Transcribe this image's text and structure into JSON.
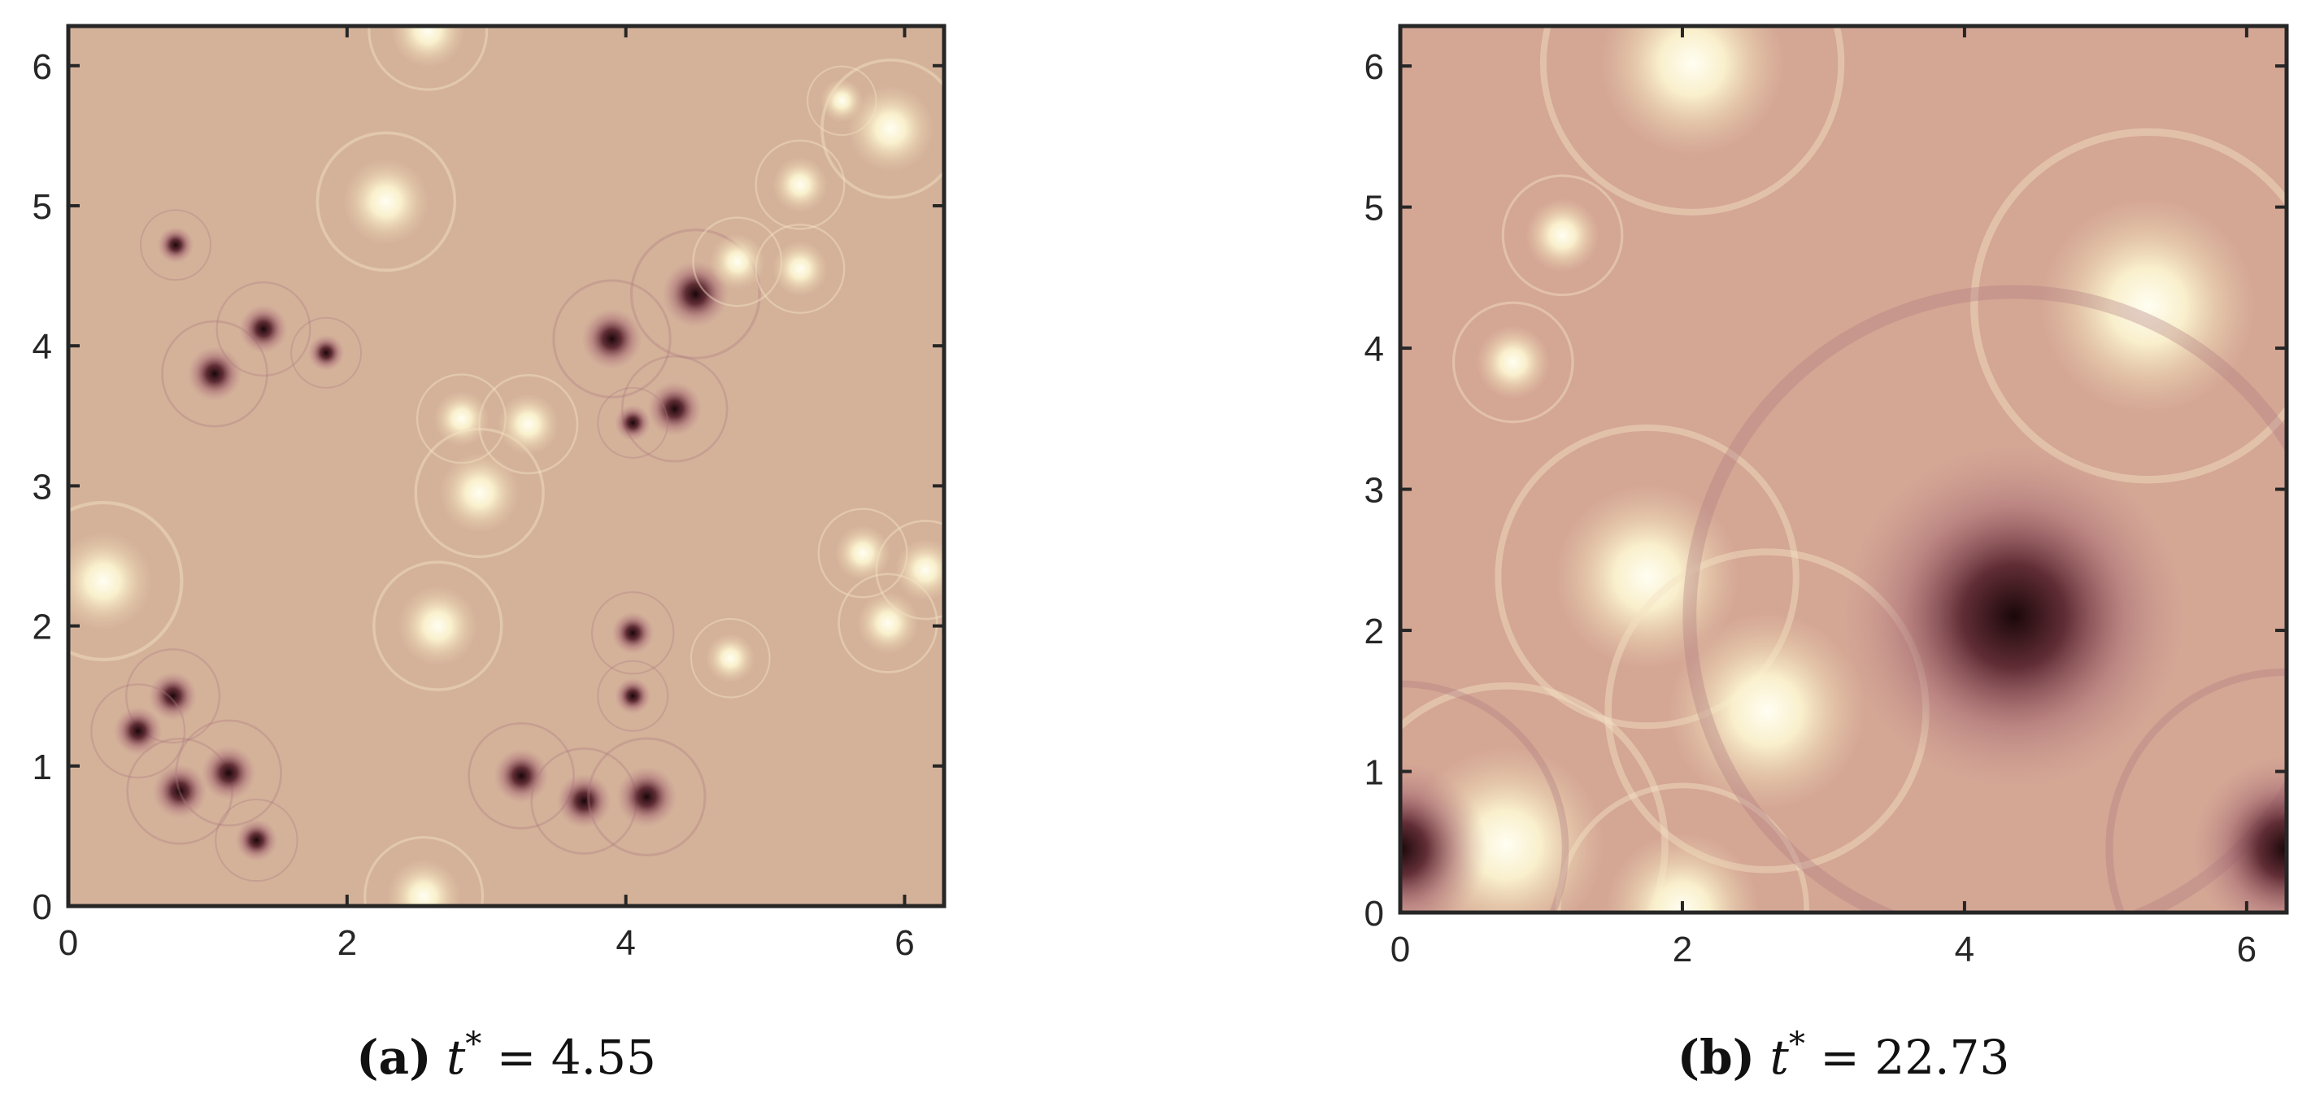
{
  "chart_data": [
    {
      "type": "heatmap",
      "caption": {
        "letter": "(a)",
        "variable": "t",
        "superscript": "*",
        "equals": "=",
        "value": "4.55"
      },
      "xlim": [
        0,
        6.2832
      ],
      "ylim": [
        0,
        6.2832
      ],
      "xticks": [
        0,
        2,
        4,
        6
      ],
      "yticks": [
        0,
        1,
        2,
        3,
        4,
        5,
        6
      ],
      "grid": false,
      "colors": {
        "background": "#d4b29a",
        "positive": "#fffbe6",
        "negative": "#1e0a0c"
      },
      "vortices": [
        {
          "x": 0.25,
          "y": 2.32,
          "r": 0.16,
          "sign": 1
        },
        {
          "x": 0.75,
          "y": 1.5,
          "r": 0.08,
          "sign": -1
        },
        {
          "x": 0.5,
          "y": 1.25,
          "r": 0.08,
          "sign": -1
        },
        {
          "x": 0.8,
          "y": 0.82,
          "r": 0.09,
          "sign": -1
        },
        {
          "x": 1.15,
          "y": 0.95,
          "r": 0.09,
          "sign": -1
        },
        {
          "x": 1.35,
          "y": 0.47,
          "r": 0.07,
          "sign": -1
        },
        {
          "x": 1.05,
          "y": 3.8,
          "r": 0.09,
          "sign": -1
        },
        {
          "x": 1.4,
          "y": 4.12,
          "r": 0.08,
          "sign": -1
        },
        {
          "x": 0.77,
          "y": 4.72,
          "r": 0.06,
          "sign": -1
        },
        {
          "x": 1.85,
          "y": 3.95,
          "r": 0.06,
          "sign": -1
        },
        {
          "x": 2.28,
          "y": 5.03,
          "r": 0.14,
          "sign": 1
        },
        {
          "x": 2.58,
          "y": 6.25,
          "r": 0.12,
          "sign": 1
        },
        {
          "x": 2.82,
          "y": 3.48,
          "r": 0.09,
          "sign": 1
        },
        {
          "x": 2.95,
          "y": 2.95,
          "r": 0.13,
          "sign": 1
        },
        {
          "x": 3.3,
          "y": 3.44,
          "r": 0.1,
          "sign": 1
        },
        {
          "x": 2.65,
          "y": 2.0,
          "r": 0.13,
          "sign": 1
        },
        {
          "x": 2.55,
          "y": 0.07,
          "r": 0.12,
          "sign": 1
        },
        {
          "x": 3.25,
          "y": 0.93,
          "r": 0.09,
          "sign": -1
        },
        {
          "x": 3.7,
          "y": 0.75,
          "r": 0.09,
          "sign": -1
        },
        {
          "x": 4.15,
          "y": 0.78,
          "r": 0.1,
          "sign": -1
        },
        {
          "x": 4.05,
          "y": 1.5,
          "r": 0.06,
          "sign": -1
        },
        {
          "x": 4.05,
          "y": 1.95,
          "r": 0.07,
          "sign": -1
        },
        {
          "x": 3.9,
          "y": 4.05,
          "r": 0.1,
          "sign": -1
        },
        {
          "x": 4.5,
          "y": 4.37,
          "r": 0.11,
          "sign": -1
        },
        {
          "x": 4.35,
          "y": 3.55,
          "r": 0.09,
          "sign": -1
        },
        {
          "x": 4.05,
          "y": 3.45,
          "r": 0.06,
          "sign": -1
        },
        {
          "x": 4.8,
          "y": 4.6,
          "r": 0.09,
          "sign": 1
        },
        {
          "x": 5.25,
          "y": 4.55,
          "r": 0.09,
          "sign": 1
        },
        {
          "x": 5.25,
          "y": 5.15,
          "r": 0.09,
          "sign": 1
        },
        {
          "x": 5.55,
          "y": 5.75,
          "r": 0.07,
          "sign": 1
        },
        {
          "x": 5.9,
          "y": 5.55,
          "r": 0.14,
          "sign": 1
        },
        {
          "x": 4.75,
          "y": 1.77,
          "r": 0.08,
          "sign": 1
        },
        {
          "x": 5.7,
          "y": 2.52,
          "r": 0.09,
          "sign": 1
        },
        {
          "x": 5.88,
          "y": 2.02,
          "r": 0.1,
          "sign": 1
        },
        {
          "x": 6.15,
          "y": 2.4,
          "r": 0.1,
          "sign": 1
        }
      ]
    },
    {
      "type": "heatmap",
      "caption": {
        "letter": "(b)",
        "variable": "t",
        "superscript": "*",
        "equals": "=",
        "value": "22.73"
      },
      "xlim": [
        0,
        6.2832
      ],
      "ylim": [
        0,
        6.2832
      ],
      "xticks": [
        0,
        2,
        4,
        6
      ],
      "yticks": [
        0,
        1,
        2,
        3,
        4,
        5,
        6
      ],
      "grid": false,
      "colors": {
        "background": "#d4a694",
        "positive": "#fffbe6",
        "negative": "#1e0a0c"
      },
      "vortices": [
        {
          "x": 2.07,
          "y": 6.02,
          "r": 0.3,
          "sign": 1
        },
        {
          "x": 5.3,
          "y": 4.3,
          "r": 0.35,
          "sign": 1
        },
        {
          "x": 1.15,
          "y": 4.8,
          "r": 0.12,
          "sign": 1
        },
        {
          "x": 0.8,
          "y": 3.9,
          "r": 0.12,
          "sign": 1
        },
        {
          "x": 1.75,
          "y": 2.38,
          "r": 0.3,
          "sign": 1
        },
        {
          "x": 2.6,
          "y": 1.43,
          "r": 0.32,
          "sign": 1
        },
        {
          "x": 0.75,
          "y": 0.48,
          "r": 0.32,
          "sign": 1
        },
        {
          "x": 2.0,
          "y": 0.02,
          "r": 0.25,
          "sign": 1
        },
        {
          "x": 4.35,
          "y": 2.1,
          "r": 0.55,
          "sign": -1
        },
        {
          "x": 0.0,
          "y": 0.45,
          "r": 0.28,
          "sign": -1
        },
        {
          "x": 6.28,
          "y": 0.45,
          "r": 0.3,
          "sign": -1
        }
      ]
    }
  ]
}
